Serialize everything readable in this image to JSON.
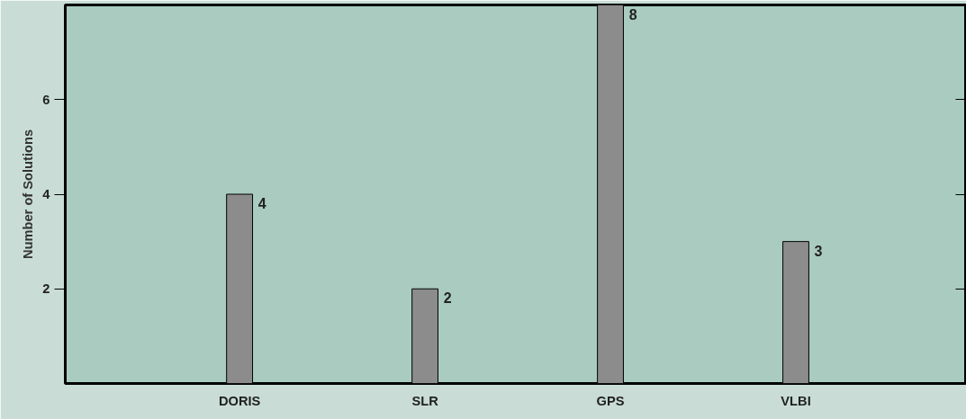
{
  "chart_data": {
    "type": "bar",
    "ylabel": "Number of Solutions",
    "categories": [
      "DORIS",
      "SLR",
      "GPS",
      "VLBI"
    ],
    "values": [
      4,
      2,
      8,
      3
    ],
    "color": "#8c8c8c",
    "ylim": [
      0,
      8
    ],
    "yticks": [
      2,
      4,
      6
    ],
    "data_labels": true,
    "grid": false
  }
}
